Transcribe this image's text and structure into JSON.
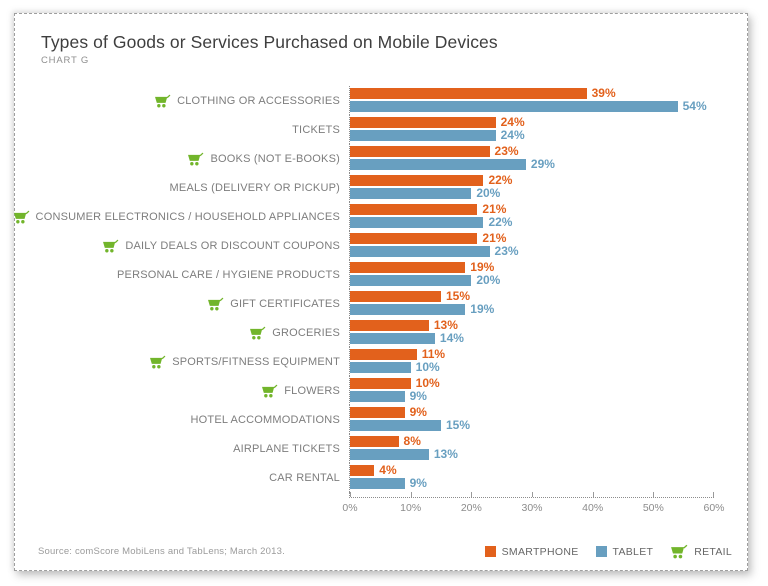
{
  "card": {
    "title": "Types of Goods or Services Purchased on Mobile Devices",
    "subtitle": "CHART G",
    "source": "Source: comScore MobiLens and TabLens; March 2013."
  },
  "colors": {
    "smartphone": "#E2611C",
    "tablet": "#689FC0",
    "retail_green": "#72B52B"
  },
  "legend": [
    {
      "label": "SMARTPHONE",
      "swatch": "orange-square"
    },
    {
      "label": "TABLET",
      "swatch": "blue-square"
    },
    {
      "label": "RETAIL",
      "swatch": "green-cart-icon"
    }
  ],
  "chart_data": {
    "type": "bar",
    "orientation": "horizontal",
    "title": "Types of Goods or Services Purchased on Mobile Devices",
    "subtitle": "CHART G",
    "categories": [
      "CLOTHING OR ACCESSORIES",
      "TICKETS",
      "BOOKS (NOT E-BOOKS)",
      "MEALS (DELIVERY OR PICKUP)",
      "CONSUMER ELECTRONICS / HOUSEHOLD APPLIANCES",
      "DAILY DEALS OR DISCOUNT COUPONS",
      "PERSONAL CARE / HYGIENE PRODUCTS",
      "GIFT CERTIFICATES",
      "GROCERIES",
      "SPORTS/FITNESS EQUIPMENT",
      "FLOWERS",
      "HOTEL ACCOMMODATIONS",
      "AIRPLANE TICKETS",
      "CAR RENTAL"
    ],
    "retail_flags": [
      true,
      false,
      true,
      false,
      true,
      true,
      false,
      true,
      true,
      true,
      true,
      false,
      false,
      false
    ],
    "series": [
      {
        "name": "SMARTPHONE",
        "color": "#E2611C",
        "values": [
          39,
          24,
          23,
          22,
          21,
          21,
          19,
          15,
          13,
          11,
          10,
          9,
          8,
          4
        ]
      },
      {
        "name": "TABLET",
        "color": "#689FC0",
        "values": [
          54,
          24,
          29,
          20,
          22,
          23,
          20,
          19,
          14,
          10,
          9,
          15,
          13,
          9
        ]
      }
    ],
    "value_suffix": "%",
    "xlim": [
      0,
      60
    ],
    "x_ticks": [
      "0%",
      "10%",
      "20%",
      "30%",
      "40%",
      "50%",
      "60%"
    ],
    "grid": false,
    "legend_position": "bottom-right"
  }
}
